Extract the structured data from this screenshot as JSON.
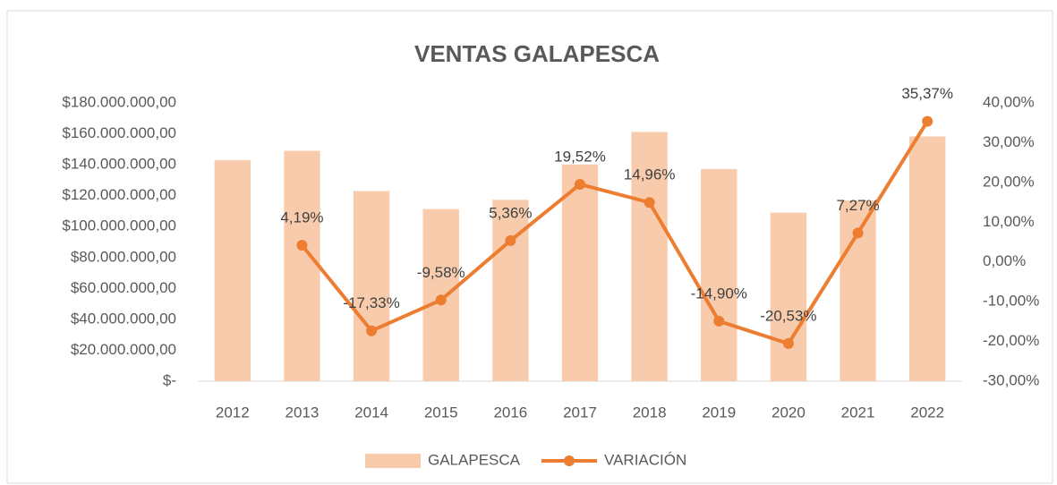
{
  "chart_data": {
    "type": "bar",
    "title": "VENTAS GALAPESCA",
    "categories": [
      "2012",
      "2013",
      "2014",
      "2015",
      "2016",
      "2017",
      "2018",
      "2019",
      "2020",
      "2021",
      "2022"
    ],
    "series": [
      {
        "name": "GALAPESCA",
        "color": "#f8cbad",
        "type": "bar",
        "values": [
          143000000,
          149000000,
          123000000,
          111300000,
          117300000,
          140200000,
          161200000,
          137200000,
          109000000,
          116900000,
          158300000
        ]
      },
      {
        "name": "VARIACIÓN",
        "color": "#ed7d31",
        "type": "line",
        "axis": "y2",
        "values": [
          null,
          4.19,
          -17.33,
          -9.58,
          5.36,
          19.52,
          14.96,
          -14.9,
          -20.53,
          7.27,
          35.37
        ],
        "value_labels": [
          null,
          "4,19%",
          "-17,33%",
          "-9,58%",
          "5,36%",
          "19,52%",
          "14,96%",
          "-14,90%",
          "-20,53%",
          "7,27%",
          "35,37%"
        ]
      }
    ],
    "ylim": [
      0,
      180000000
    ],
    "yticks": [
      {
        "value": 0,
        "label": "$-"
      },
      {
        "value": 20000000,
        "label": "$20.000.000,00"
      },
      {
        "value": 40000000,
        "label": "$40.000.000,00"
      },
      {
        "value": 60000000,
        "label": "$60.000.000,00"
      },
      {
        "value": 80000000,
        "label": "$80.000.000,00"
      },
      {
        "value": 100000000,
        "label": "$100.000.000,00"
      },
      {
        "value": 120000000,
        "label": "$120.000.000,00"
      },
      {
        "value": 140000000,
        "label": "$140.000.000,00"
      },
      {
        "value": 160000000,
        "label": "$160.000.000,00"
      },
      {
        "value": 180000000,
        "label": "$180.000.000,00"
      }
    ],
    "y2lim": [
      -30,
      40
    ],
    "y2ticks": [
      {
        "value": -30,
        "label": "-30,00%"
      },
      {
        "value": -20,
        "label": "-20,00%"
      },
      {
        "value": -10,
        "label": "-10,00%"
      },
      {
        "value": 0,
        "label": "0,00%"
      },
      {
        "value": 10,
        "label": "10,00%"
      },
      {
        "value": 20,
        "label": "20,00%"
      },
      {
        "value": 30,
        "label": "30,00%"
      },
      {
        "value": 40,
        "label": "40,00%"
      }
    ],
    "legend": "bottom",
    "grid": false
  }
}
